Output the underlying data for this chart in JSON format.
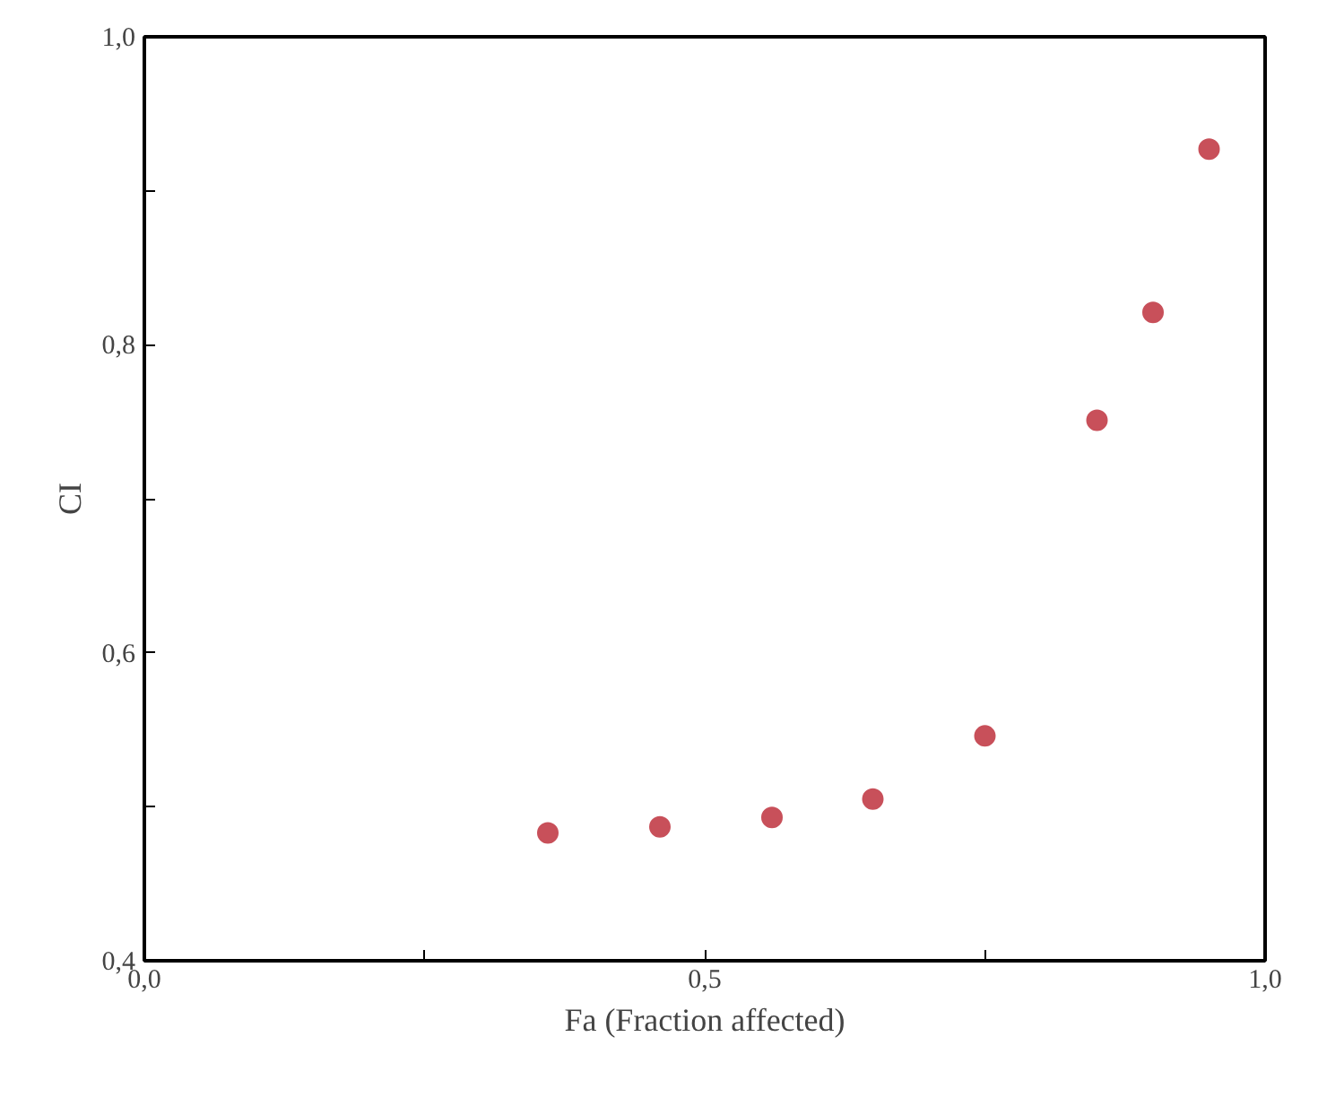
{
  "chart_data": {
    "type": "scatter",
    "xlabel": "Fa (Fraction affected)",
    "ylabel": "CI",
    "x": [
      0.36,
      0.46,
      0.56,
      0.65,
      0.75,
      0.85,
      0.9,
      0.95
    ],
    "series": [
      {
        "color": "#c8505a",
        "values": [
          0.483,
          0.487,
          0.493,
          0.505,
          0.546,
          0.751,
          0.821,
          0.927
        ]
      }
    ],
    "xlim": [
      0,
      1
    ],
    "ylim": [
      0.4,
      1
    ],
    "xticks": [
      {
        "value": 0,
        "label": "0,0"
      },
      {
        "value": 0.25,
        "label": null
      },
      {
        "value": 0.5,
        "label": "0,5"
      },
      {
        "value": 0.75,
        "label": null
      },
      {
        "value": 1,
        "label": "1,0"
      }
    ],
    "yticks": [
      {
        "value": 0.4,
        "label": "0,4"
      },
      {
        "value": 0.5,
        "label": null
      },
      {
        "value": 0.6,
        "label": "0,6"
      },
      {
        "value": 0.7,
        "label": null
      },
      {
        "value": 0.8,
        "label": "0,8"
      },
      {
        "value": 0.9,
        "label": null
      },
      {
        "value": 1,
        "label": "1,0"
      }
    ],
    "grid": false,
    "marker": "circle"
  }
}
